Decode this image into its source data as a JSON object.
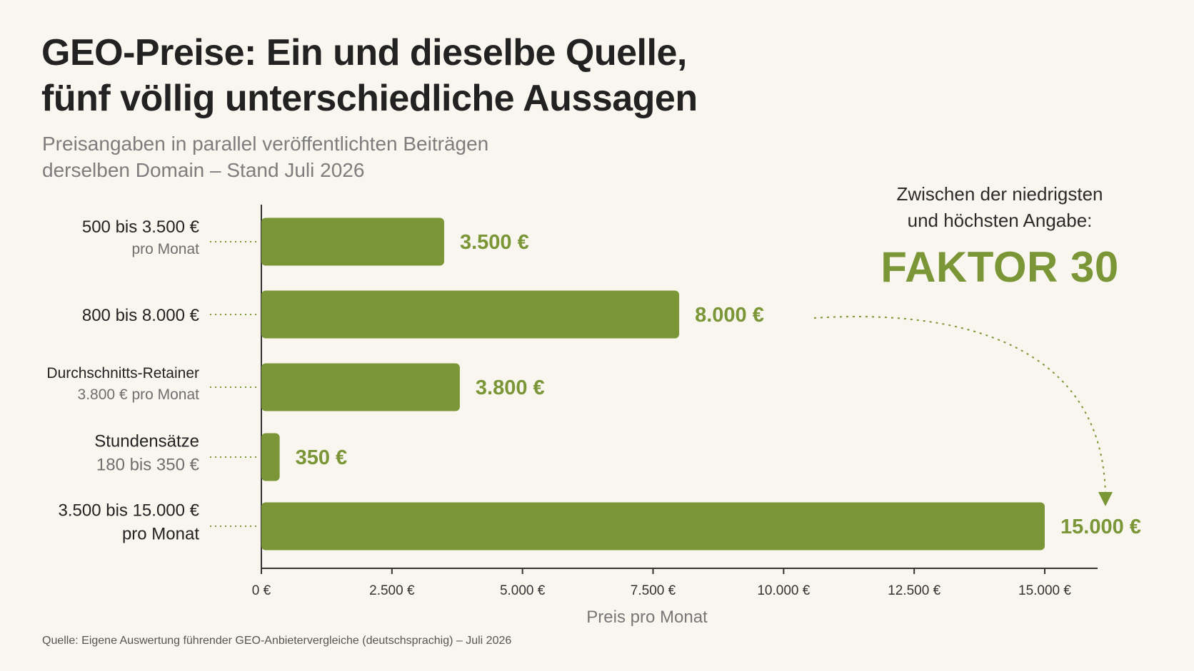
{
  "title": {
    "line1": "GEO-Preise: Ein und dieselbe Quelle,",
    "line2": "fünf völlig unterschiedliche Aussagen"
  },
  "subtitle": {
    "line1": "Preisangaben in parallel veröffentlichten Beiträgen",
    "line2": "derselben Domain – Stand Juli 2026"
  },
  "callout": {
    "line1": "Zwischen der niedrigsten",
    "line2": "und höchsten Angabe:",
    "highlight": "FAKTOR 30"
  },
  "source": "Quelle: Eigene Auswertung führender GEO-Anbietervergleiche (deutschsprachig) – Juli 2026",
  "colors": {
    "bar": "#7a9636",
    "value_label": "#7a9636",
    "background": "#f8f6ef"
  },
  "chart_data": {
    "type": "bar",
    "orientation": "horizontal",
    "categories": [
      {
        "line1": "500 bis 3.500 €",
        "line2": "pro Monat",
        "line2_style": "muted-small"
      },
      {
        "line1": "800 bis 8.000 €",
        "line2": "",
        "line2_style": "muted-small"
      },
      {
        "line1": "Durchschnitts-Retainer",
        "line2": "3.800 € pro Monat",
        "line2_style": "muted-small"
      },
      {
        "line1": "Stundensätze",
        "line2": "180 bis 350 €",
        "line2_style": "muted-large"
      },
      {
        "line1": "3.500 bis 15.000 €",
        "line2": "pro Monat",
        "line2_style": "dark-large"
      }
    ],
    "values": [
      3500,
      8000,
      3800,
      350,
      15000
    ],
    "value_labels": [
      "3.500 €",
      "8.000 €",
      "3.800 €",
      "350 €",
      "15.000 €"
    ],
    "xlim": [
      0,
      16000
    ],
    "ticks": [
      0,
      2500,
      5000,
      7500,
      10000,
      12500,
      15000
    ],
    "tick_labels": [
      "0 €",
      "2.500 €",
      "5.000 €",
      "7.500 €",
      "10.000 €",
      "12.500 €",
      "15.000 €"
    ],
    "xlabel": "Preis pro Monat",
    "ylabel": "",
    "grid": false,
    "annotation": {
      "type": "dotted-arrow",
      "from_bar": 1,
      "to_bar": 4
    }
  }
}
